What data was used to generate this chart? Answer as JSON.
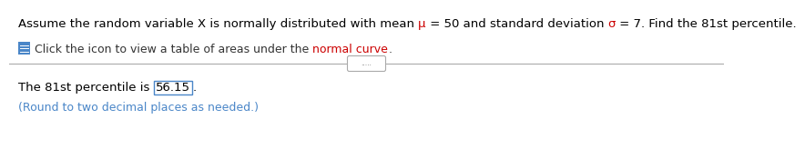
{
  "line1_segments": [
    {
      "text": "Assume the random variable X is normally distributed with mean ",
      "color": "#000000"
    },
    {
      "text": "μ",
      "color": "#cc0000"
    },
    {
      "text": " = 50 and standard deviation ",
      "color": "#000000"
    },
    {
      "text": "σ",
      "color": "#cc0000"
    },
    {
      "text": " = 7. Find the 81st percentile.",
      "color": "#000000"
    }
  ],
  "icon_color": "#4a86c8",
  "click_text_segments": [
    {
      "text": "Click the icon to view a table of areas under the ",
      "color": "#333333"
    },
    {
      "text": "normal curve",
      "color": "#cc0000"
    },
    {
      "text": ".",
      "color": "#333333"
    }
  ],
  "divider_color": "#aaaaaa",
  "dots_text": ".....",
  "answer_prefix": "The 81st percentile is ",
  "answer_value": "56.15",
  "answer_suffix": ".",
  "answer_text_color": "#000000",
  "answer_box_color": "#4a86c8",
  "footnote": "(Round to two decimal places as needed.)",
  "footnote_color": "#4a86c8",
  "bg_color": "#ffffff",
  "fontsize_main": 9.5,
  "fontsize_small": 9.0,
  "fontsize_icon": 8.0
}
